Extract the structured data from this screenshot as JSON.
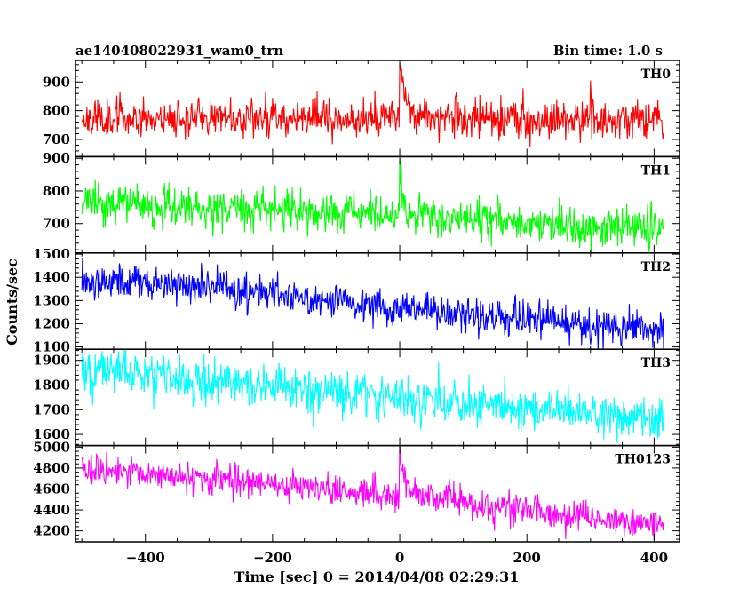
{
  "chart_data": {
    "type": "line",
    "title": "ae140408022931_wam0_trn",
    "bin_time_label": "Bin time: 1.0 s",
    "xlabel": "Time [sec] 0 = 2014/04/08 02:29:31",
    "ylabel": "Counts/sec",
    "xlim": [
      -510,
      440
    ],
    "x_range": [
      -500,
      415
    ],
    "x_ticks": [
      -400,
      -200,
      0,
      200,
      400
    ],
    "x_tick_labels": [
      "−400",
      "−200",
      "0",
      "200",
      "400"
    ],
    "grid": false,
    "series": [
      {
        "name": "TH0",
        "color": "#ff0000",
        "ylim": [
          640,
          975
        ],
        "y_ticks": [
          700,
          800,
          900
        ],
        "y_tick_labels": [
          "700",
          "800",
          "900"
        ],
        "baseline": [
          [
            -500,
            775
          ],
          [
            -200,
            778
          ],
          [
            0,
            775
          ],
          [
            200,
            768
          ],
          [
            415,
            762
          ]
        ],
        "noise": 38,
        "burst": {
          "t0": 0,
          "peak": 200,
          "decay": 8
        },
        "seed": 11
      },
      {
        "name": "TH1",
        "color": "#00ff00",
        "ylim": [
          610,
          905
        ],
        "y_ticks": [
          700,
          800,
          900
        ],
        "y_tick_labels": [
          "700",
          "800",
          "900"
        ],
        "baseline": [
          [
            -500,
            762
          ],
          [
            -200,
            740
          ],
          [
            0,
            722
          ],
          [
            200,
            698
          ],
          [
            415,
            682
          ]
        ],
        "noise": 36,
        "burst": {
          "t0": 0,
          "peak": 160,
          "decay": 4
        },
        "seed": 23
      },
      {
        "name": "TH2",
        "color": "#0000ff",
        "ylim": [
          1090,
          1505
        ],
        "y_ticks": [
          1100,
          1200,
          1300,
          1400,
          1500
        ],
        "y_tick_labels": [
          "1100",
          "1200",
          "1300",
          "1400",
          "1500"
        ],
        "baseline": [
          [
            -500,
            1395
          ],
          [
            -250,
            1345
          ],
          [
            0,
            1270
          ],
          [
            200,
            1220
          ],
          [
            415,
            1170
          ]
        ],
        "noise": 45,
        "burst": {
          "t0": 0,
          "peak": 40,
          "decay": 6
        },
        "seed": 37
      },
      {
        "name": "TH3",
        "color": "#00ffff",
        "ylim": [
          1555,
          1945
        ],
        "y_ticks": [
          1600,
          1700,
          1800,
          1900
        ],
        "y_tick_labels": [
          "1600",
          "1700",
          "1800",
          "1900"
        ],
        "baseline": [
          [
            -500,
            1860
          ],
          [
            -200,
            1790
          ],
          [
            0,
            1745
          ],
          [
            200,
            1705
          ],
          [
            415,
            1655
          ]
        ],
        "noise": 52,
        "burst": {
          "t0": 0,
          "peak": 30,
          "decay": 6
        },
        "seed": 51
      },
      {
        "name": "TH0123",
        "color": "#ff00ff",
        "ylim": [
          4095,
          5015
        ],
        "y_ticks": [
          4200,
          4400,
          4600,
          4800,
          5000
        ],
        "y_tick_labels": [
          "4200",
          "4400",
          "4600",
          "4800",
          "5000"
        ],
        "baseline": [
          [
            -500,
            4790
          ],
          [
            -200,
            4650
          ],
          [
            0,
            4540
          ],
          [
            200,
            4400
          ],
          [
            415,
            4250
          ]
        ],
        "noise": 85,
        "burst": {
          "t0": 0,
          "peak": 430,
          "decay": 10
        },
        "seed": 73
      }
    ]
  }
}
